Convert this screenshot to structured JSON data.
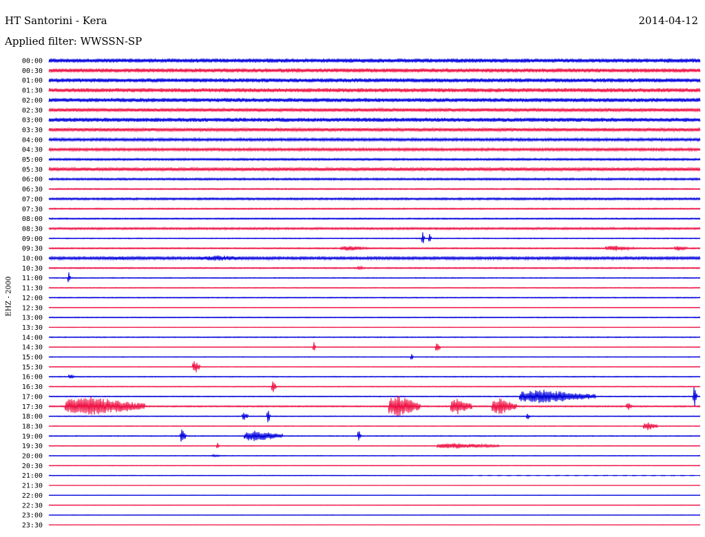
{
  "header": {
    "station": "HT Santorini - Kera",
    "date": "2014-04-12",
    "filter": "Applied filter: WWSSN-SP"
  },
  "chart_data": {
    "type": "line",
    "ylabel": "EHZ - 2000",
    "rows": [
      "00:00",
      "00:30",
      "01:00",
      "01:30",
      "02:00",
      "02:30",
      "03:00",
      "03:30",
      "04:00",
      "04:30",
      "05:00",
      "05:30",
      "06:00",
      "06:30",
      "07:00",
      "07:30",
      "08:00",
      "08:30",
      "09:00",
      "09:30",
      "10:00",
      "10:30",
      "11:00",
      "11:30",
      "12:00",
      "12:30",
      "13:00",
      "13:30",
      "14:00",
      "14:30",
      "15:00",
      "15:30",
      "16:00",
      "16:30",
      "17:00",
      "17:30",
      "18:00",
      "18:30",
      "19:00",
      "19:30",
      "20:00",
      "20:30",
      "21:00",
      "21:30",
      "22:00",
      "22:30",
      "23:00",
      "23:30"
    ],
    "colors": {
      "even": "#0000dd",
      "odd": "#ee1144"
    },
    "noise": [
      3,
      3,
      3,
      3,
      3,
      2.5,
      3,
      2.5,
      2,
      2,
      1.5,
      2.5,
      1.5,
      1,
      1.5,
      1,
      1,
      1.5,
      0.7,
      1,
      2,
      1,
      0.7,
      0.7,
      0.7,
      0.5,
      0.7,
      0.5,
      0.7,
      0.5,
      0.5,
      0.5,
      0.7,
      0.7,
      0.7,
      1,
      0.6,
      0.6,
      0.7,
      0.6,
      0.5,
      0.5,
      0.5,
      0.4,
      0.4,
      0.4,
      0.4,
      0.4
    ],
    "events": [
      {
        "row": 18,
        "x": 613,
        "w": 3,
        "a": 14
      },
      {
        "row": 18,
        "x": 623,
        "w": 3,
        "a": 10
      },
      {
        "row": 19,
        "x": 495,
        "w": 40,
        "a": 4
      },
      {
        "row": 19,
        "x": 880,
        "w": 45,
        "a": 4
      },
      {
        "row": 19,
        "x": 980,
        "w": 18,
        "a": 4
      },
      {
        "row": 20,
        "x": 150,
        "w": 80,
        "a": 3
      },
      {
        "row": 20,
        "x": 290,
        "w": 90,
        "a": 4
      },
      {
        "row": 21,
        "x": 520,
        "w": 10,
        "a": 3
      },
      {
        "row": 22,
        "x": 99,
        "w": 3,
        "a": 11
      },
      {
        "row": 29,
        "x": 455,
        "w": 3,
        "a": 8
      },
      {
        "row": 29,
        "x": 633,
        "w": 6,
        "a": 8
      },
      {
        "row": 30,
        "x": 597,
        "w": 3,
        "a": 6
      },
      {
        "row": 31,
        "x": 280,
        "w": 10,
        "a": 10
      },
      {
        "row": 32,
        "x": 100,
        "w": 8,
        "a": 4
      },
      {
        "row": 33,
        "x": 395,
        "w": 6,
        "a": 12
      },
      {
        "row": 34,
        "x": 755,
        "w": 110,
        "a": 10
      },
      {
        "row": 34,
        "x": 1007,
        "w": 5,
        "a": 16
      },
      {
        "row": 35,
        "x": 95,
        "w": 115,
        "a": 14
      },
      {
        "row": 35,
        "x": 565,
        "w": 45,
        "a": 16
      },
      {
        "row": 35,
        "x": 655,
        "w": 30,
        "a": 12
      },
      {
        "row": 35,
        "x": 715,
        "w": 35,
        "a": 12
      },
      {
        "row": 35,
        "x": 910,
        "w": 8,
        "a": 6
      },
      {
        "row": 36,
        "x": 352,
        "w": 8,
        "a": 6
      },
      {
        "row": 36,
        "x": 388,
        "w": 4,
        "a": 12
      },
      {
        "row": 36,
        "x": 765,
        "w": 4,
        "a": 6
      },
      {
        "row": 37,
        "x": 935,
        "w": 20,
        "a": 6
      },
      {
        "row": 38,
        "x": 262,
        "w": 8,
        "a": 10
      },
      {
        "row": 38,
        "x": 355,
        "w": 55,
        "a": 8
      },
      {
        "row": 38,
        "x": 520,
        "w": 4,
        "a": 10
      },
      {
        "row": 39,
        "x": 315,
        "w": 3,
        "a": 7
      },
      {
        "row": 39,
        "x": 635,
        "w": 90,
        "a": 4
      },
      {
        "row": 40,
        "x": 308,
        "w": 12,
        "a": 2
      }
    ],
    "gaps": [
      {
        "row": 42,
        "x": 680,
        "w": 340
      }
    ]
  }
}
